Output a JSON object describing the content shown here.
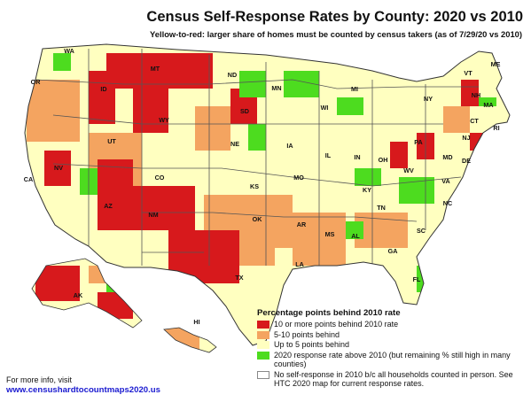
{
  "title": "Census Self-Response Rates by County: 2020 vs 2010",
  "subtitle": "Yellow-to-red: larger share of homes must be counted by census takers (as of 7/29/20 vs 2010)",
  "colors": {
    "red": "#d7191c",
    "orange": "#f4a460",
    "yellow": "#ffffc0",
    "green": "#4ddc1f",
    "white": "#ffffff",
    "border": "#666666"
  },
  "state_labels": [
    "WA",
    "OR",
    "CA",
    "ID",
    "NV",
    "MT",
    "WY",
    "UT",
    "AZ",
    "CO",
    "NM",
    "ND",
    "SD",
    "NE",
    "KS",
    "OK",
    "TX",
    "MN",
    "IA",
    "MO",
    "AR",
    "LA",
    "WI",
    "IL",
    "MS",
    "MI",
    "IN",
    "KY",
    "TN",
    "AL",
    "OH",
    "WV",
    "GA",
    "FL",
    "SC",
    "NC",
    "VA",
    "PA",
    "NY",
    "MD",
    "DE",
    "NJ",
    "VT",
    "ME",
    "NH",
    "MA",
    "CT",
    "RI",
    "AK",
    "HI"
  ],
  "legend": {
    "title": "Percentage points behind 2010 rate",
    "items": [
      {
        "color": "#d7191c",
        "label": "10 or more points behind 2010 rate"
      },
      {
        "color": "#f4a460",
        "label": "5-10 points behind"
      },
      {
        "color": "#ffffc0",
        "label": "Up to 5 points behind"
      },
      {
        "color": "#4ddc1f",
        "label": "2020 response rate above 2010 (but remaining % still high in many counties)"
      },
      {
        "color": "#ffffff",
        "label": "No self-response in 2010 b/c all households counted in person. See HTC 2020 map for current response rates."
      }
    ]
  },
  "footer": {
    "note": "For more info, visit",
    "link": "www.censushardtocountmaps2020.us"
  }
}
